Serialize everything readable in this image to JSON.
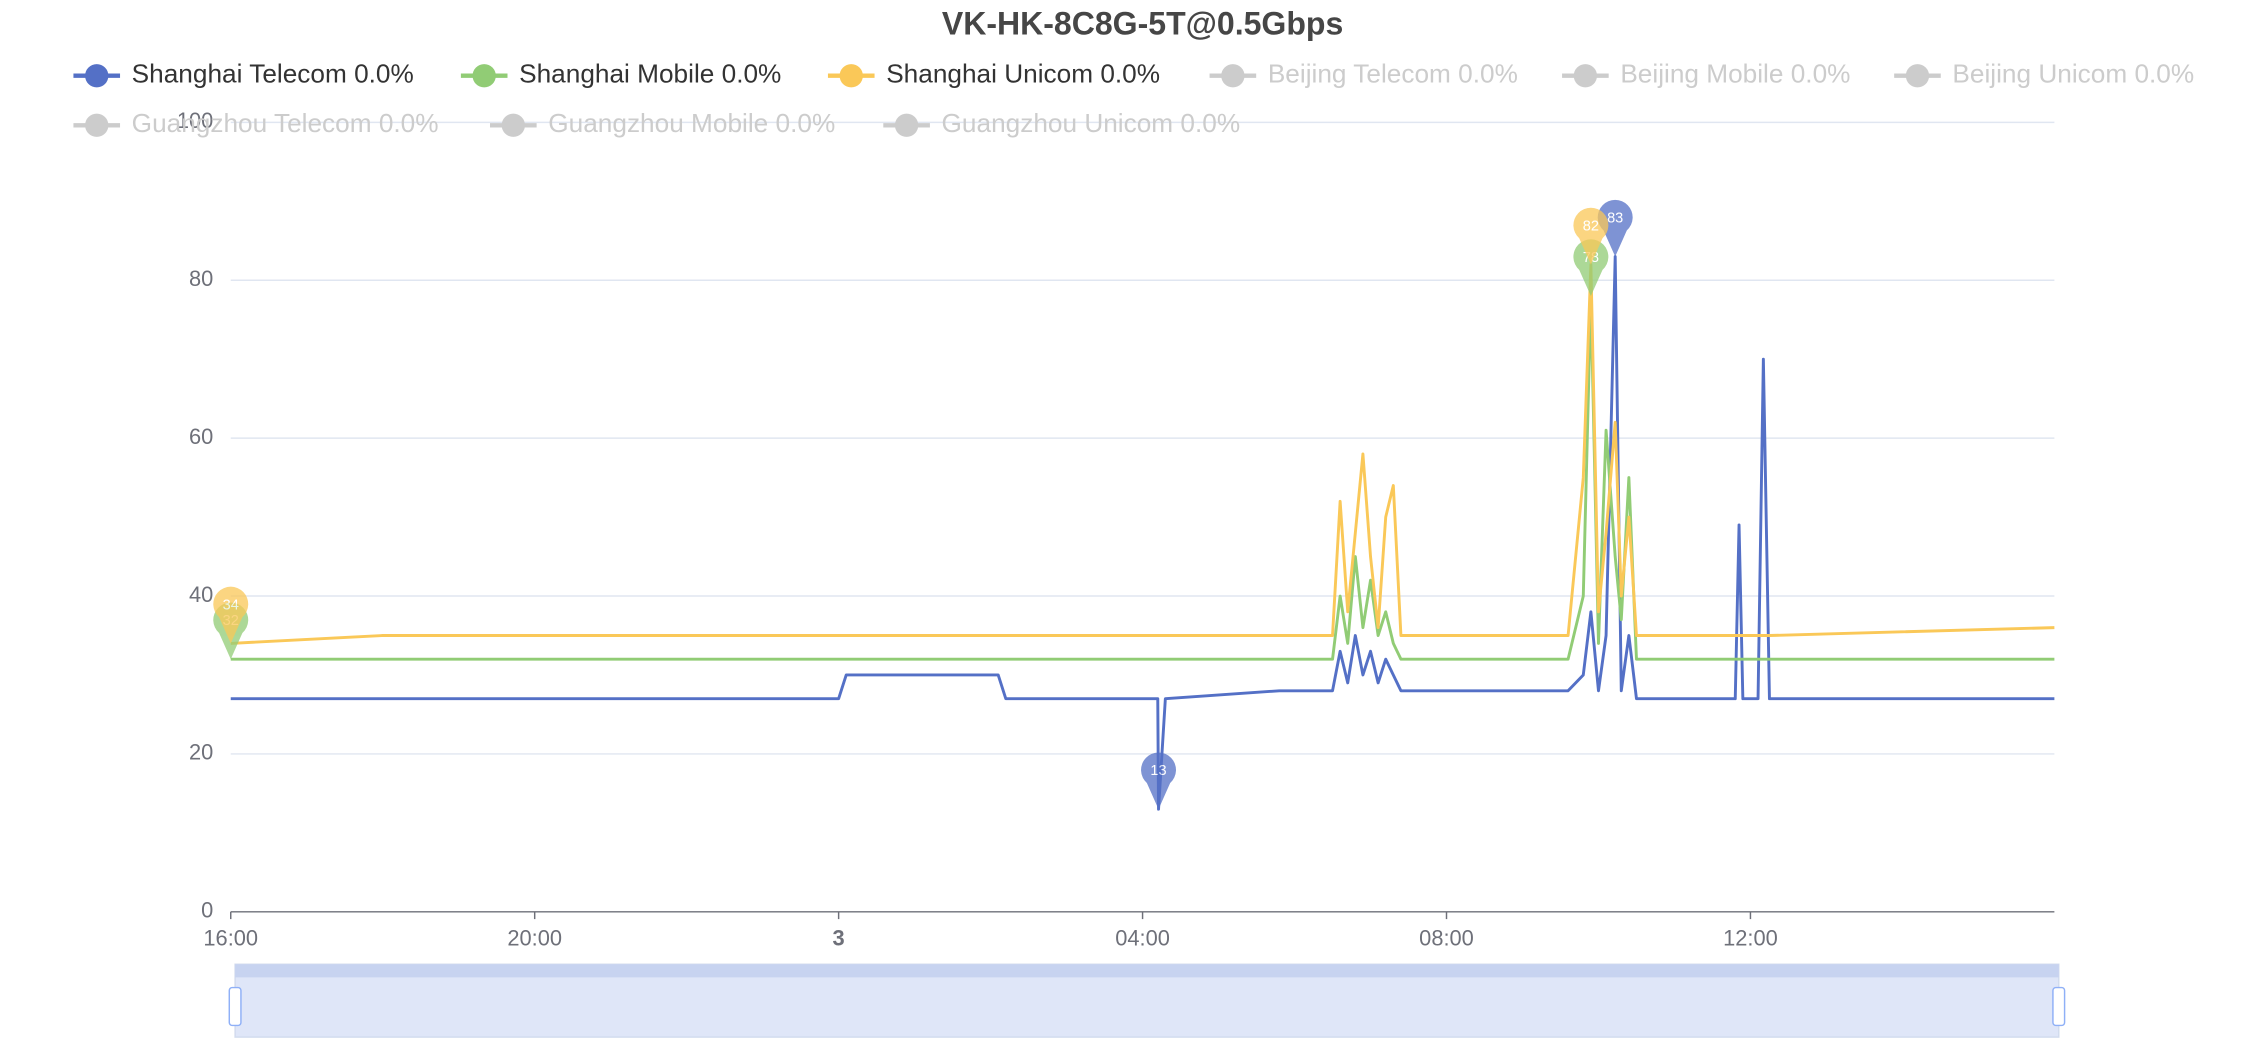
{
  "chart_data": {
    "type": "line",
    "title": "VK-HK-8C8G-5T@0.5Gbps",
    "x": [
      16,
      18,
      21.2,
      24,
      24.1,
      26.1,
      26.2,
      28.1,
      28.2,
      28.21,
      28.3,
      29.8,
      30.5,
      30.6,
      30.7,
      30.8,
      30.9,
      31.0,
      31.1,
      31.2,
      31.3,
      31.4,
      31.6,
      33.6,
      33.8,
      33.9,
      34.0,
      34.1,
      34.22,
      34.3,
      34.4,
      34.5,
      34.6,
      35.8,
      35.85,
      35.9,
      36.1,
      36.17,
      36.25,
      40
    ],
    "series": [
      {
        "name": "Shanghai Telecom 0.0%",
        "color": "#5470c6",
        "values": [
          27,
          27,
          27,
          27,
          30,
          30,
          27,
          27,
          27,
          13,
          27,
          28,
          28,
          33,
          29,
          35,
          30,
          33,
          29,
          32,
          30,
          28,
          28,
          28,
          30,
          38,
          28,
          35,
          83,
          28,
          35,
          27,
          27,
          27,
          49,
          27,
          27,
          70,
          27,
          27
        ]
      },
      {
        "name": "Shanghai Mobile 0.0%",
        "color": "#91cc75",
        "values": [
          32,
          32,
          32,
          32,
          32,
          32,
          32,
          32,
          32,
          32,
          32,
          32,
          32,
          40,
          34,
          45,
          36,
          42,
          35,
          38,
          34,
          32,
          32,
          32,
          40,
          78,
          34,
          61,
          45,
          37,
          55,
          32,
          32,
          32,
          32,
          32,
          32,
          32,
          32,
          32
        ]
      },
      {
        "name": "Shanghai Unicom 0.0%",
        "color": "#fac858",
        "values": [
          34,
          35,
          35,
          35,
          35,
          35,
          35,
          35,
          35,
          35,
          35,
          35,
          35,
          52,
          38,
          48,
          58,
          45,
          36,
          50,
          54,
          35,
          35,
          35,
          55,
          82,
          38,
          48,
          62,
          40,
          50,
          35,
          35,
          35,
          35,
          35,
          35,
          35,
          35,
          36
        ]
      },
      {
        "name": "Beijing Telecom 0.0%",
        "color": "#cccccc",
        "visible": false,
        "values": [
          null,
          null,
          null,
          null,
          null,
          null,
          null,
          null,
          null,
          null,
          null,
          null,
          null,
          null,
          null,
          null,
          null,
          null,
          null,
          null,
          null,
          null,
          null,
          null,
          null,
          null,
          null,
          null,
          null,
          null,
          null,
          null,
          null,
          null,
          null,
          null,
          null,
          null,
          null,
          null
        ]
      },
      {
        "name": "Beijing Mobile 0.0%",
        "color": "#cccccc",
        "visible": false,
        "values": [
          null,
          null,
          null,
          null,
          null,
          null,
          null,
          null,
          null,
          null,
          null,
          null,
          null,
          null,
          null,
          null,
          null,
          null,
          null,
          null,
          null,
          null,
          null,
          null,
          null,
          null,
          null,
          null,
          null,
          null,
          null,
          null,
          null,
          null,
          null,
          null,
          null,
          null,
          null,
          null
        ]
      },
      {
        "name": "Beijing Unicom 0.0%",
        "color": "#cccccc",
        "visible": false,
        "values": [
          null,
          null,
          null,
          null,
          null,
          null,
          null,
          null,
          null,
          null,
          null,
          null,
          null,
          null,
          null,
          null,
          null,
          null,
          null,
          null,
          null,
          null,
          null,
          null,
          null,
          null,
          null,
          null,
          null,
          null,
          null,
          null,
          null,
          null,
          null,
          null,
          null,
          null,
          null,
          null
        ]
      },
      {
        "name": "Guangzhou Telecom 0.0%",
        "color": "#cccccc",
        "visible": false,
        "values": [
          null,
          null,
          null,
          null,
          null,
          null,
          null,
          null,
          null,
          null,
          null,
          null,
          null,
          null,
          null,
          null,
          null,
          null,
          null,
          null,
          null,
          null,
          null,
          null,
          null,
          null,
          null,
          null,
          null,
          null,
          null,
          null,
          null,
          null,
          null,
          null,
          null,
          null,
          null,
          null
        ]
      },
      {
        "name": "Guangzhou Mobile 0.0%",
        "color": "#cccccc",
        "visible": false,
        "values": [
          null,
          null,
          null,
          null,
          null,
          null,
          null,
          null,
          null,
          null,
          null,
          null,
          null,
          null,
          null,
          null,
          null,
          null,
          null,
          null,
          null,
          null,
          null,
          null,
          null,
          null,
          null,
          null,
          null,
          null,
          null,
          null,
          null,
          null,
          null,
          null,
          null,
          null,
          null,
          null
        ]
      },
      {
        "name": "Guangzhou Unicom 0.0%",
        "color": "#cccccc",
        "visible": false,
        "values": [
          null,
          null,
          null,
          null,
          null,
          null,
          null,
          null,
          null,
          null,
          null,
          null,
          null,
          null,
          null,
          null,
          null,
          null,
          null,
          null,
          null,
          null,
          null,
          null,
          null,
          null,
          null,
          null,
          null,
          null,
          null,
          null,
          null,
          null,
          null,
          null,
          null,
          null,
          null,
          null
        ]
      }
    ],
    "xlim": [
      16,
      40
    ],
    "xticks": [
      {
        "value": 16,
        "label": "16:00"
      },
      {
        "value": 20,
        "label": "20:00"
      },
      {
        "value": 24,
        "label": "3"
      },
      {
        "value": 28,
        "label": "04:00"
      },
      {
        "value": 32,
        "label": "08:00"
      },
      {
        "value": 36,
        "label": "12:00"
      }
    ],
    "ylim": [
      0,
      100
    ],
    "yticks": [
      0,
      20,
      40,
      60,
      80,
      100
    ],
    "grid": true
  }
}
